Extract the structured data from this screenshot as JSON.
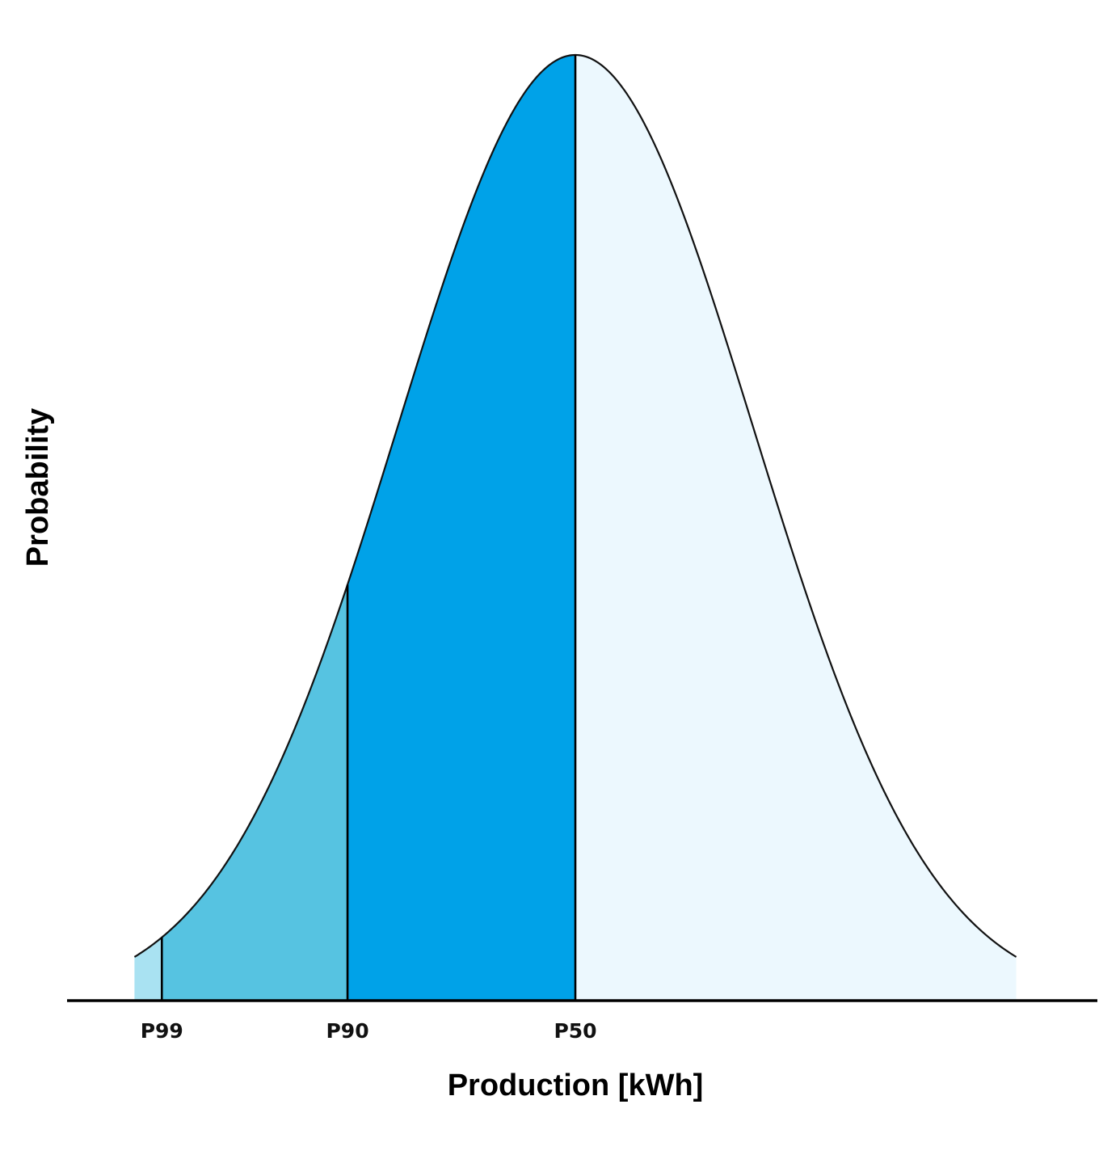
{
  "chart_data": {
    "type": "area",
    "title": "",
    "xlabel": "Production [kWh]",
    "ylabel": "Probability",
    "distribution": "normal",
    "grid": false,
    "legend": "none",
    "markers": [
      {
        "label": "P99",
        "percentile_exceeded": 99,
        "z": -2.326,
        "fill": "#a9e2f2"
      },
      {
        "label": "P90",
        "percentile_exceeded": 90,
        "z": -1.2816,
        "fill": "#56c3e1"
      },
      {
        "label": "P50",
        "percentile_exceeded": 50,
        "z": 0,
        "fill": "#00a2e8"
      }
    ],
    "right_tail_fill": "#ecf8fe",
    "curve_color": "#111111",
    "axis_color": "#000000"
  }
}
